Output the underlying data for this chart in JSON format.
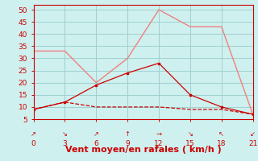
{
  "xlabel": "Vent moyen/en rafales ( km/h )",
  "x": [
    0,
    3,
    6,
    9,
    12,
    15,
    18,
    21
  ],
  "line1_y": [
    33,
    33,
    20,
    30,
    50,
    43,
    43,
    7
  ],
  "line2_y": [
    9,
    12,
    10,
    10,
    10,
    9,
    9,
    7
  ],
  "line3_y": [
    9,
    12,
    19,
    24,
    28,
    15,
    10,
    7
  ],
  "line1_color": "#f08080",
  "line2_color": "#cc0000",
  "line3_color": "#cc0000",
  "bg_color": "#cef0ee",
  "grid_color": "#99cccc",
  "axis_color": "#cc0000",
  "tick_color": "#cc0000",
  "ylim": [
    5,
    52
  ],
  "yticks": [
    5,
    10,
    15,
    20,
    25,
    30,
    35,
    40,
    45,
    50
  ],
  "xticks": [
    0,
    3,
    6,
    9,
    12,
    15,
    18,
    21
  ],
  "arrow_labels": [
    "↗",
    "↘",
    "↗",
    "↑",
    "→",
    "↘",
    "↖",
    "↙"
  ],
  "xlabel_color": "#cc0000",
  "xlabel_fontsize": 8
}
